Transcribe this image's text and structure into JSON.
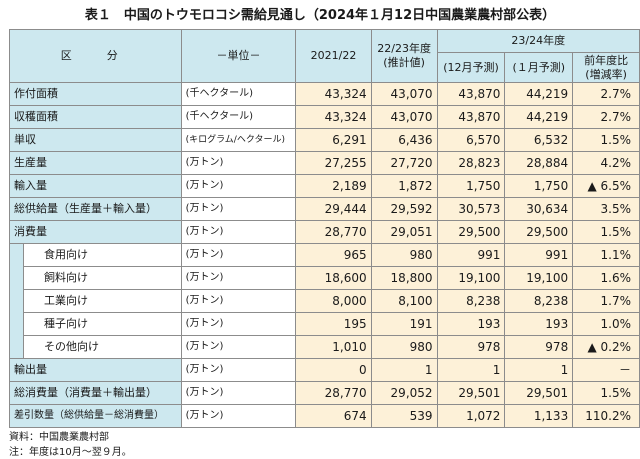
{
  "title": "表１　中国のトウモロコシ需給見通し（2024年１月12日中国農業農村部公表）",
  "header": {
    "item": "区　分",
    "unit": "－単位－",
    "col_2021": "2021/22",
    "col_2223_l1": "22/23年度",
    "col_2223_l2": "(推計値)",
    "group_2324": "23/24年度",
    "dec": "(12月予測)",
    "jan": "(１月予測)",
    "yoy_l1": "前年度比",
    "yoy_l2": "(増減率)"
  },
  "rows": [
    {
      "item": "作付面積",
      "unit": "(千ヘクタール)",
      "v1": "43,324",
      "v2": "43,070",
      "v3": "43,870",
      "v4": "44,219",
      "yoy": "2.7%"
    },
    {
      "item": "収穫面積",
      "unit": "(千ヘクタール)",
      "v1": "43,324",
      "v2": "43,070",
      "v3": "43,870",
      "v4": "44,219",
      "yoy": "2.7%"
    },
    {
      "item": "単収",
      "unit": "(キログラム/ヘクタール)",
      "v1": "6,291",
      "v2": "6,436",
      "v3": "6,570",
      "v4": "6,532",
      "yoy": "1.5%"
    },
    {
      "item": "生産量",
      "unit": "(万トン)",
      "v1": "27,255",
      "v2": "27,720",
      "v3": "28,823",
      "v4": "28,884",
      "yoy": "4.2%"
    },
    {
      "item": "輸入量",
      "unit": "(万トン)",
      "v1": "2,189",
      "v2": "1,872",
      "v3": "1,750",
      "v4": "1,750",
      "yoy": "▲ 6.5%"
    },
    {
      "item": "総供給量（生産量＋輸入量）",
      "unit": "(万トン)",
      "v1": "29,444",
      "v2": "29,592",
      "v3": "30,573",
      "v4": "30,634",
      "yoy": "3.5%"
    },
    {
      "item": "消費量",
      "unit": "(万トン)",
      "v1": "28,770",
      "v2": "29,051",
      "v3": "29,500",
      "v4": "29,500",
      "yoy": "1.5%"
    },
    {
      "item": "食用向け",
      "unit": "(万トン)",
      "v1": "965",
      "v2": "980",
      "v3": "991",
      "v4": "991",
      "yoy": "1.1%"
    },
    {
      "item": "飼料向け",
      "unit": "(万トン)",
      "v1": "18,600",
      "v2": "18,800",
      "v3": "19,100",
      "v4": "19,100",
      "yoy": "1.6%"
    },
    {
      "item": "工業向け",
      "unit": "(万トン)",
      "v1": "8,000",
      "v2": "8,100",
      "v3": "8,238",
      "v4": "8,238",
      "yoy": "1.7%"
    },
    {
      "item": "種子向け",
      "unit": "(万トン)",
      "v1": "195",
      "v2": "191",
      "v3": "193",
      "v4": "193",
      "yoy": "1.0%"
    },
    {
      "item": "その他向け",
      "unit": "(万トン)",
      "v1": "1,010",
      "v2": "980",
      "v3": "978",
      "v4": "978",
      "yoy": "▲ 0.2%"
    },
    {
      "item": "輸出量",
      "unit": "(万トン)",
      "v1": "0",
      "v2": "1",
      "v3": "1",
      "v4": "1",
      "yoy": "－"
    },
    {
      "item": "総消費量（消費量＋輸出量）",
      "unit": "(万トン)",
      "v1": "28,770",
      "v2": "29,052",
      "v3": "29,501",
      "v4": "29,501",
      "yoy": "1.5%"
    },
    {
      "item": "差引数量（総供給量－総消費量）",
      "unit": "(万トン)",
      "v1": "674",
      "v2": "539",
      "v3": "1,072",
      "v4": "1,133",
      "yoy": "110.2%"
    }
  ],
  "footnotes": {
    "source": "資料：中国農業農村部",
    "note": "注：年度は10月～翌９月。"
  }
}
